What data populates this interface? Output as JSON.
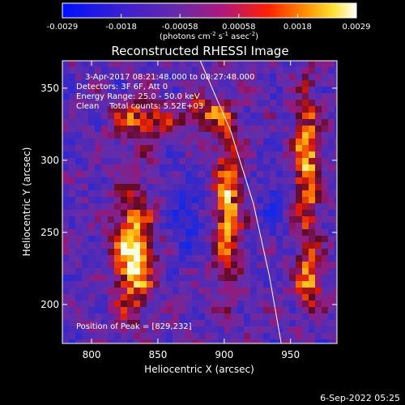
{
  "colorbar": {
    "ticks": [
      "-0.0029",
      "-0.0018",
      "-0.00058",
      "0.00058",
      "0.0018",
      "0.0029"
    ],
    "units_main": "(photons cm",
    "units_sup1": "-2",
    "units_mid": " s",
    "units_sup2": "-1",
    "units_end": " asec",
    "units_sup3": "-2",
    "units_close": ")"
  },
  "plot": {
    "title": "Reconstructed RHESSI Image",
    "annotations": {
      "time": "3-Apr-2017 08:21:48.000 to 08:27:48.000",
      "detectors": "Detectors: 3F 6F, Att 0",
      "energy": "Energy Range: 25.0 - 50.0 keV",
      "clean": "Clean    Total counts: 5.52E+03",
      "peak": "Position of Peak = [829,232]"
    }
  },
  "footer": {
    "timestamp": "6-Sep-2022 05:25"
  },
  "chart_data": {
    "type": "heatmap",
    "title": "Reconstructed RHESSI Image",
    "xlabel": "Heliocentric X (arcsec)",
    "ylabel": "Heliocentric Y (arcsec)",
    "xlim": [
      778,
      985
    ],
    "ylim": [
      173,
      369
    ],
    "xticks": [
      800,
      850,
      900,
      950
    ],
    "yticks": [
      200,
      250,
      300,
      350
    ],
    "colorbar_range": [
      -0.0029,
      0.0029
    ],
    "colormap": "blue-purple-red-yellow-white",
    "peak": [
      829,
      232
    ],
    "limb_curve": [
      [
        882,
        369
      ],
      [
        905,
        320
      ],
      [
        922,
        270
      ],
      [
        934,
        220
      ],
      [
        943,
        173
      ]
    ],
    "features": [
      {
        "label": "bright source",
        "x": 829,
        "y": 232
      },
      {
        "label": "bright arc",
        "x": 896,
        "y": 270
      },
      {
        "label": "bright arc",
        "x": 958,
        "y": 290
      }
    ]
  }
}
